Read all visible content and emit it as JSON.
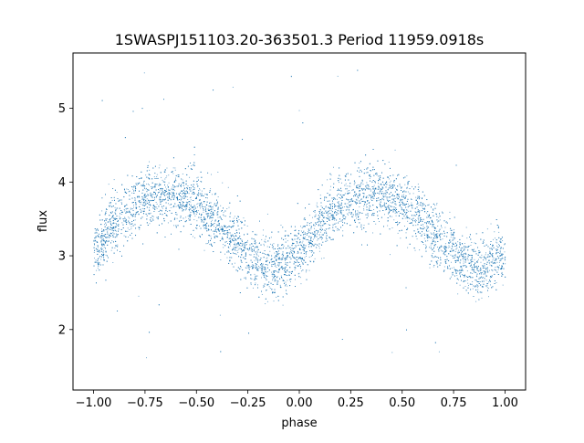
{
  "chart_data": {
    "type": "scatter",
    "title": "1SWASPJ151103.20-363501.3 Period 11959.0918s",
    "xlabel": "phase",
    "ylabel": "flux",
    "xlim": [
      -1.1,
      1.1
    ],
    "ylim": [
      1.18,
      5.75
    ],
    "x_ticks": [
      -1.0,
      -0.75,
      -0.5,
      -0.25,
      0.0,
      0.25,
      0.5,
      0.75,
      1.0
    ],
    "x_tick_labels": [
      "−1.00",
      "−0.75",
      "−0.50",
      "−0.25",
      "0.00",
      "0.25",
      "0.50",
      "0.75",
      "1.00"
    ],
    "y_ticks": [
      2,
      3,
      4,
      5
    ],
    "y_tick_labels": [
      "2",
      "3",
      "4",
      "5"
    ],
    "grid": false,
    "legend": "none",
    "series": [
      {
        "color": "#1f77b4",
        "marker": "point",
        "phase_range": [
          -1.0,
          1.0
        ],
        "profile_x": [
          -1.0,
          -0.9,
          -0.8,
          -0.7,
          -0.65,
          -0.6,
          -0.5,
          -0.4,
          -0.3,
          -0.2,
          -0.15,
          -0.1,
          0.0,
          0.1,
          0.2,
          0.3,
          0.35,
          0.4,
          0.5,
          0.6,
          0.7,
          0.8,
          0.85,
          0.9,
          1.0
        ],
        "profile_y": [
          3.05,
          3.45,
          3.7,
          3.83,
          3.85,
          3.82,
          3.7,
          3.48,
          3.15,
          2.9,
          2.85,
          2.86,
          3.05,
          3.45,
          3.7,
          3.83,
          3.85,
          3.82,
          3.7,
          3.48,
          3.15,
          2.9,
          2.85,
          2.86,
          3.05
        ],
        "scatter_sigma": 0.2,
        "outlier_range": [
          1.4,
          5.55
        ]
      }
    ]
  }
}
